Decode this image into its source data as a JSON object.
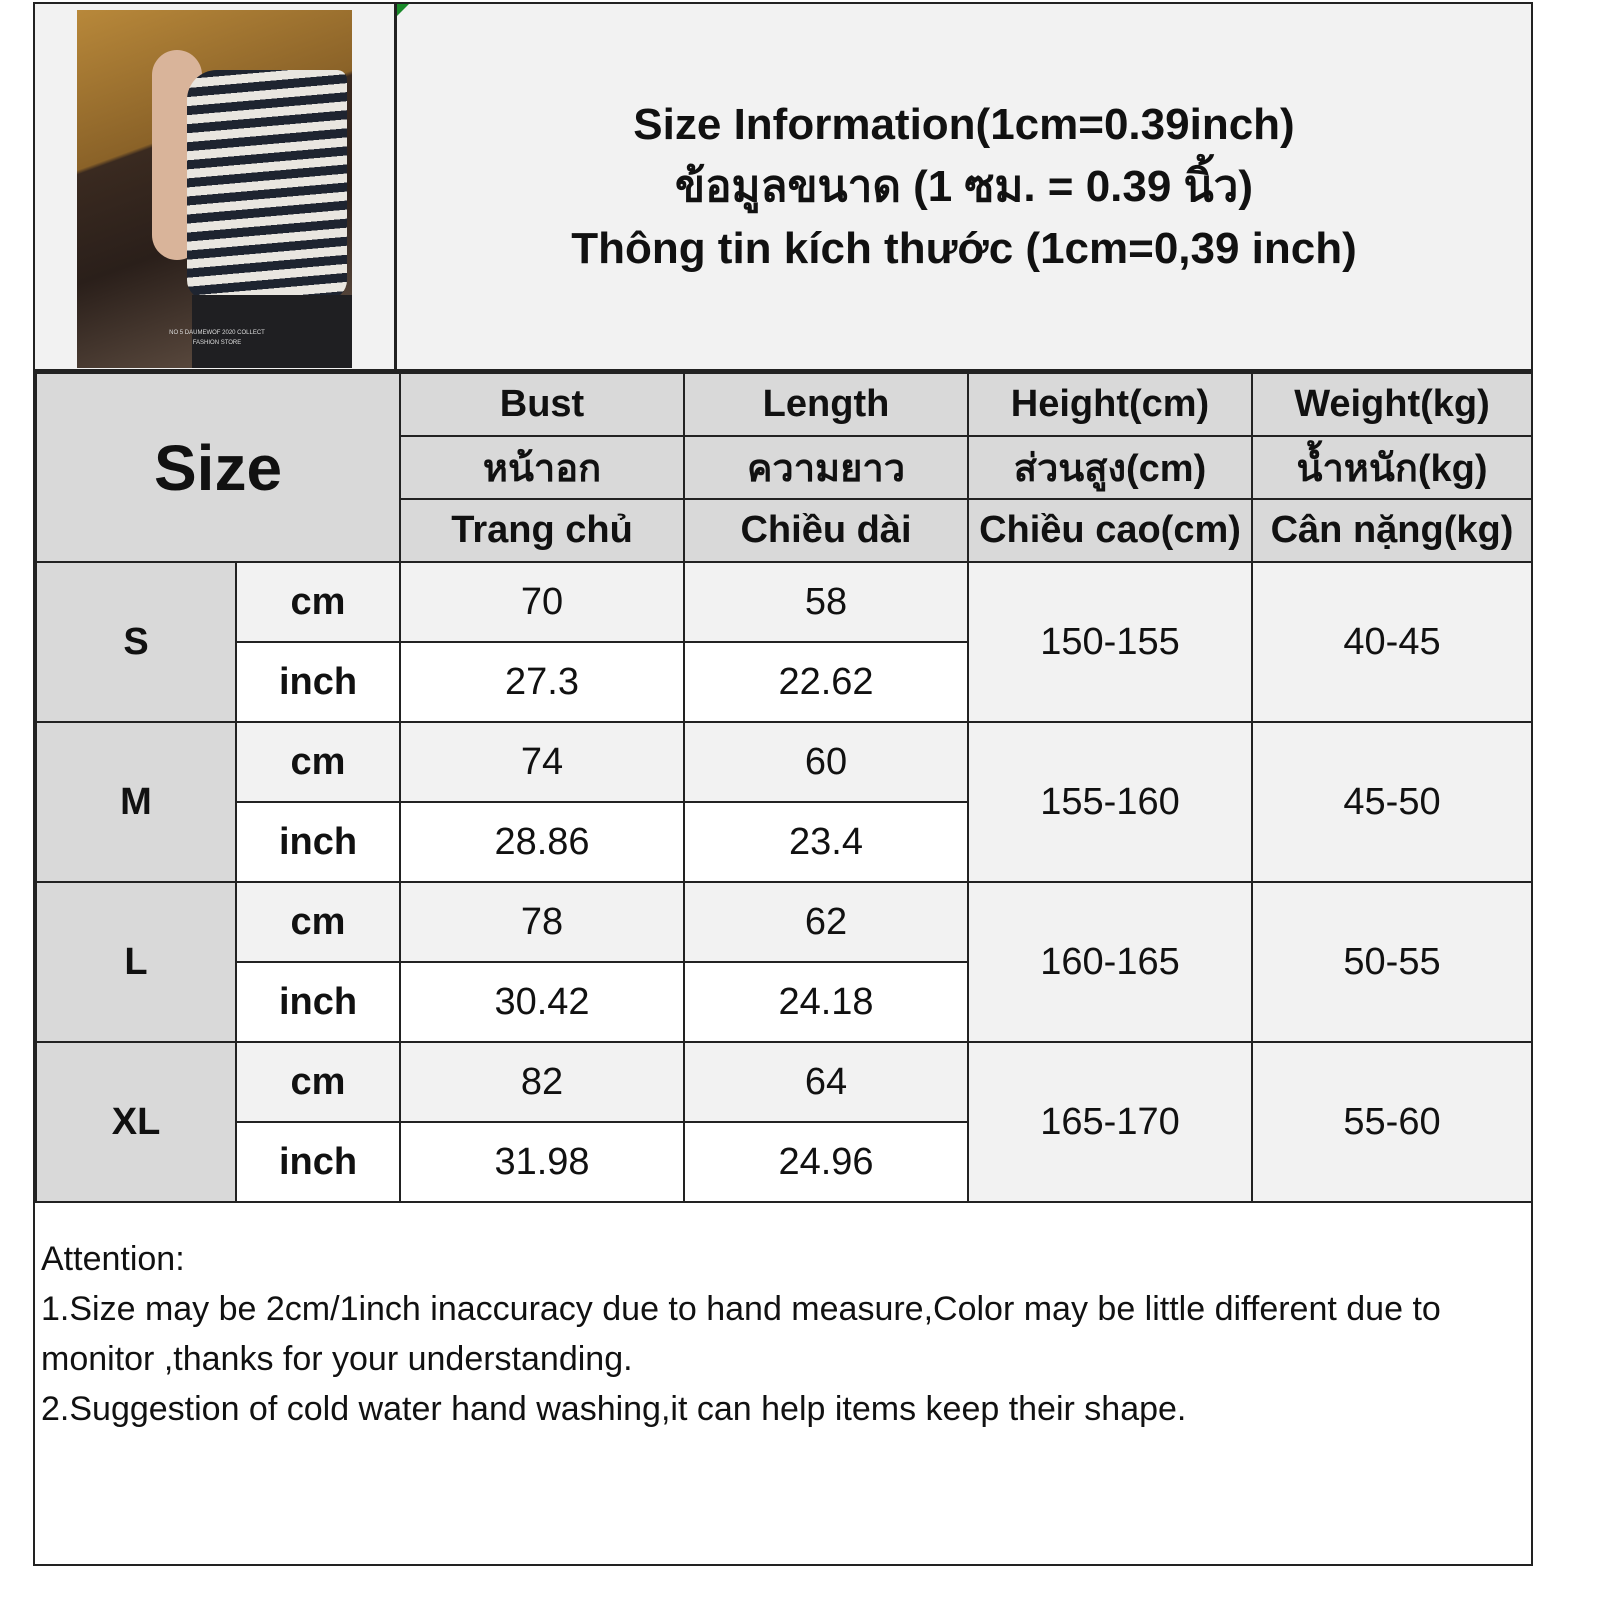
{
  "title": {
    "line_en": "Size Information(1cm=0.39inch)",
    "line_th": "ข้อมูลขนาด (1 ซม. = 0.39 นิ้ว)",
    "line_vi": "Thông tin kích thước (1cm=0,39 inch)"
  },
  "photo": {
    "caption_line1": "NO 5 DAUMEWOF 2020 COLLECT",
    "caption_line2": "FASHION STORE"
  },
  "colors": {
    "header_bg": "#d9d9d9",
    "cm_row_bg": "#f2f2f2",
    "inch_row_bg": "#ffffff",
    "border": "#222222"
  },
  "table": {
    "size_header": "Size",
    "columns": [
      {
        "en": "Bust",
        "th": "หน้าอก",
        "vi": "Trang chủ"
      },
      {
        "en": "Length",
        "th": "ความยาว",
        "vi": "Chiều dài"
      },
      {
        "en": "Height(cm)",
        "th": "ส่วนสูง(cm)",
        "vi": "Chiều cao(cm)"
      },
      {
        "en": "Weight(kg)",
        "th": "น้ำหนัก(kg)",
        "vi": "Cân nặng(kg)"
      }
    ],
    "rows": [
      {
        "size": "S",
        "cm_label": "cm",
        "inch_label": "inch",
        "bust_cm": "70",
        "length_cm": "58",
        "bust_inch": "27.3",
        "length_inch": "22.62",
        "height": "150-155",
        "weight": "40-45"
      },
      {
        "size": "M",
        "cm_label": "cm",
        "inch_label": "inch",
        "bust_cm": "74",
        "length_cm": "60",
        "bust_inch": "28.86",
        "length_inch": "23.4",
        "height": "155-160",
        "weight": "45-50"
      },
      {
        "size": "L",
        "cm_label": "cm",
        "inch_label": "inch",
        "bust_cm": "78",
        "length_cm": "62",
        "bust_inch": "30.42",
        "length_inch": "24.18",
        "height": "160-165",
        "weight": "50-55"
      },
      {
        "size": "XL",
        "cm_label": "cm",
        "inch_label": "inch",
        "bust_cm": "82",
        "length_cm": "64",
        "bust_inch": "31.98",
        "length_inch": "24.96",
        "height": "165-170",
        "weight": "55-60"
      }
    ]
  },
  "notes": {
    "heading": "Attention:",
    "items": [
      "1.Size may be 2cm/1inch inaccuracy due to hand measure,Color may be little different due to monitor ,thanks for your understanding.",
      "2.Suggestion of cold water hand washing,it can help items keep their shape."
    ]
  }
}
